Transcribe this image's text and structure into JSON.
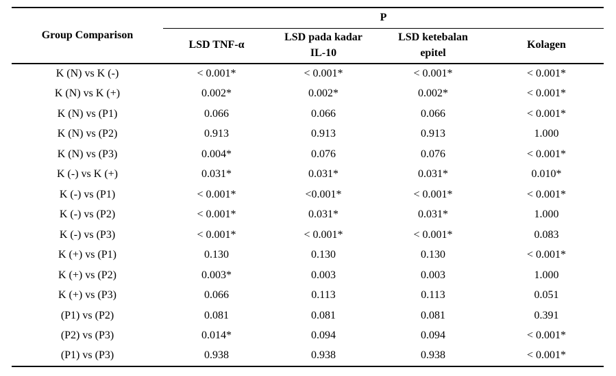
{
  "page": {
    "background": "#ffffff",
    "text_color": "#000000",
    "rule_color": "#000000"
  },
  "table": {
    "group_header": "Group Comparison",
    "p_header": "P",
    "sub_headers": [
      "LSD TNF-α",
      "LSD pada kadar\nIL-10",
      "LSD ketebalan\nepitel",
      "Kolagen"
    ],
    "rows": [
      {
        "label": "K (N) vs K (-)",
        "values": [
          "< 0.001*",
          "< 0.001*",
          "< 0.001*",
          "< 0.001*"
        ]
      },
      {
        "label": "K (N) vs K (+)",
        "values": [
          "0.002*",
          "0.002*",
          "0.002*",
          "< 0.001*"
        ]
      },
      {
        "label": "K (N) vs (P1)",
        "values": [
          "0.066",
          "0.066",
          "0.066",
          "< 0.001*"
        ]
      },
      {
        "label": "K (N) vs (P2)",
        "values": [
          "0.913",
          "0.913",
          "0.913",
          "1.000"
        ]
      },
      {
        "label": "K (N) vs (P3)",
        "values": [
          "0.004*",
          "0.076",
          "0.076",
          "< 0.001*"
        ]
      },
      {
        "label": "K (-) vs K (+)",
        "values": [
          "0.031*",
          "0.031*",
          "0.031*",
          "0.010*"
        ]
      },
      {
        "label": "K (-) vs (P1)",
        "values": [
          "< 0.001*",
          "<0.001*",
          "< 0.001*",
          "< 0.001*"
        ]
      },
      {
        "label": "K (-) vs (P2)",
        "values": [
          "< 0.001*",
          "0.031*",
          "0.031*",
          "1.000"
        ]
      },
      {
        "label": "K (-) vs (P3)",
        "values": [
          "< 0.001*",
          "< 0.001*",
          "< 0.001*",
          "0.083"
        ]
      },
      {
        "label": "K (+) vs (P1)",
        "values": [
          "0.130",
          "0.130",
          "0.130",
          "< 0.001*"
        ]
      },
      {
        "label": "K (+) vs (P2)",
        "values": [
          "0.003*",
          "0.003",
          "0.003",
          "1.000"
        ]
      },
      {
        "label": "K (+) vs (P3)",
        "values": [
          "0.066",
          "0.113",
          "0.113",
          "0.051"
        ]
      },
      {
        "label": "(P1) vs (P2)",
        "values": [
          "0.081",
          "0.081",
          "0.081",
          "0.391"
        ]
      },
      {
        "label": "(P2) vs (P3)",
        "values": [
          "0.014*",
          "0.094",
          "0.094",
          "< 0.001*"
        ]
      },
      {
        "label": "(P1) vs (P3)",
        "values": [
          "0.938",
          "0.938",
          "0.938",
          "< 0.001*"
        ]
      }
    ]
  }
}
